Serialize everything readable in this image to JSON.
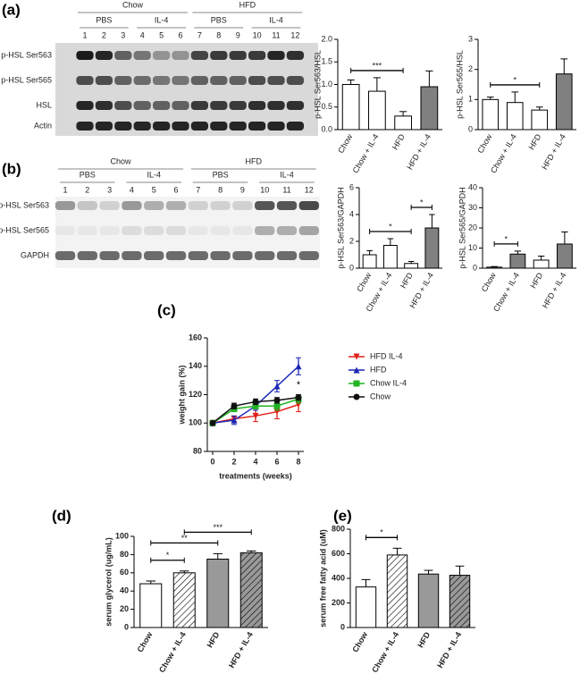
{
  "panel_labels": [
    "(a)",
    "(b)",
    "(c)",
    "(d)",
    "(e)"
  ],
  "blots": [
    {
      "groups": [
        "Chow",
        "HFD"
      ],
      "treatments": [
        "PBS",
        "IL-4",
        "PBS",
        "IL-4"
      ],
      "lanes": [
        "1",
        "2",
        "3",
        "4",
        "5",
        "6",
        "7",
        "8",
        "9",
        "10",
        "11",
        "12"
      ],
      "rows": [
        "p-HSL Ser563",
        "p-HSL Ser565",
        "HSL",
        "Actin"
      ]
    },
    {
      "groups": [
        "Chow",
        "HFD"
      ],
      "treatments": [
        "PBS",
        "IL-4",
        "PBS",
        "IL-4"
      ],
      "lanes": [
        "1",
        "2",
        "3",
        "4",
        "5",
        "6",
        "7",
        "8",
        "9",
        "10",
        "11",
        "12"
      ],
      "rows": [
        "p-HSL Ser563",
        "p-HSL Ser565",
        "GAPDH"
      ]
    }
  ],
  "chart_data": [
    {
      "type": "bar",
      "y_label": "p-HSL Ser563/HSL",
      "categories": [
        "Chow",
        "Chow + IL-4",
        "HFD",
        "HFD + IL-4"
      ],
      "values": [
        1.0,
        0.85,
        0.3,
        0.95
      ],
      "errors": [
        0.1,
        0.3,
        0.1,
        0.35
      ],
      "colors": [
        "#ffffff",
        "#ffffff",
        "#ffffff",
        "#808080"
      ],
      "hatch": [
        false,
        false,
        false,
        false
      ],
      "ylim": [
        0,
        2
      ],
      "yticks": [
        {
          "value": 0,
          "label": "0.0"
        },
        0.5,
        {
          "value": 1,
          "label": "1.0"
        },
        1.5,
        {
          "value": 2,
          "label": "2.0"
        }
      ],
      "significance": [
        {
          "between": [
            "Chow",
            "HFD"
          ],
          "label": "***"
        }
      ]
    },
    {
      "type": "bar",
      "y_label": "p-HSL Ser565/HSL",
      "categories": [
        "Chow",
        "Chow + IL-4",
        "HFD",
        "HFD + IL-4"
      ],
      "values": [
        1.0,
        0.9,
        0.65,
        1.85
      ],
      "errors": [
        0.08,
        0.35,
        0.1,
        0.5
      ],
      "colors": [
        "#ffffff",
        "#ffffff",
        "#ffffff",
        "#808080"
      ],
      "hatch": [
        false,
        false,
        false,
        false
      ],
      "ylim": [
        0,
        3
      ],
      "yticks": [
        0,
        1,
        2,
        3
      ],
      "significance": [
        {
          "between": [
            "Chow",
            "HFD"
          ],
          "label": "*"
        }
      ]
    },
    {
      "type": "bar",
      "y_label": "p-HSL Ser563/GAPDH",
      "categories": [
        "Chow",
        "Chow + IL-4",
        "HFD",
        "HFD + IL-4"
      ],
      "values": [
        1.0,
        1.7,
        0.35,
        3.0
      ],
      "errors": [
        0.3,
        0.5,
        0.15,
        1.0
      ],
      "colors": [
        "#ffffff",
        "#ffffff",
        "#ffffff",
        "#808080"
      ],
      "hatch": [
        false,
        false,
        false,
        false
      ],
      "ylim": [
        0,
        6
      ],
      "yticks": [
        0,
        2,
        4,
        6
      ],
      "significance": [
        {
          "between": [
            "Chow",
            "HFD"
          ],
          "label": "*"
        },
        {
          "between": [
            "HFD",
            "HFD + IL-4"
          ],
          "label": "*"
        }
      ]
    },
    {
      "type": "bar",
      "y_label": "p-HSL Ser565/GAPDH",
      "categories": [
        "Chow",
        "Chow + IL-4",
        "HFD",
        "HFD + IL-4"
      ],
      "values": [
        0.5,
        7,
        4,
        12
      ],
      "errors": [
        0.3,
        1.5,
        2,
        6
      ],
      "colors": [
        "#ffffff",
        "#808080",
        "#ffffff",
        "#808080"
      ],
      "hatch": [
        false,
        false,
        false,
        false
      ],
      "ylim": [
        0,
        40
      ],
      "yticks": [
        0,
        10,
        20,
        30,
        40
      ],
      "significance": [
        {
          "between": [
            "Chow",
            "Chow + IL-4"
          ],
          "label": "*"
        }
      ]
    },
    {
      "type": "line",
      "x_label": "treatments (weeks)",
      "y_label": "weight gain (%)",
      "x": [
        0,
        2,
        4,
        6,
        8
      ],
      "xlim": [
        -0.5,
        8.5
      ],
      "xticks": [
        0,
        2,
        4,
        6,
        8
      ],
      "ylim": [
        80,
        160
      ],
      "yticks": [
        80,
        100,
        120,
        140,
        160
      ],
      "series": [
        {
          "name": "HFD IL-4",
          "color": "#e0201b",
          "marker": "down",
          "values": [
            100,
            103,
            105,
            108,
            113
          ],
          "errors": [
            1,
            2,
            4,
            5,
            5
          ]
        },
        {
          "name": "HFD",
          "color": "#1c28b4",
          "marker": "up",
          "values": [
            100,
            102,
            112,
            126,
            140
          ],
          "errors": [
            1,
            3,
            3,
            4,
            6
          ]
        },
        {
          "name": "Chow IL-4",
          "color": "#22b422",
          "marker": "square",
          "values": [
            100,
            110,
            112,
            112,
            117
          ],
          "errors": [
            1,
            2,
            2,
            3,
            3
          ]
        },
        {
          "name": "Chow",
          "color": "#111111",
          "marker": "circle",
          "values": [
            100,
            112,
            115,
            116,
            118
          ],
          "errors": [
            1,
            2,
            2,
            2,
            2
          ]
        }
      ],
      "annotations": [
        {
          "x": 8,
          "y": 127,
          "label": "*"
        }
      ]
    },
    {
      "type": "bar",
      "y_label": "serum glycerol (ug/mL)",
      "categories": [
        "Chow",
        "Chow + IL-4",
        "HFD",
        "HFD + IL-4"
      ],
      "values": [
        48,
        60,
        75,
        82
      ],
      "errors": [
        3,
        2,
        6,
        2
      ],
      "colors": [
        "#ffffff",
        "#ffffff",
        "#999999",
        "#999999"
      ],
      "hatch": [
        false,
        true,
        false,
        true
      ],
      "ylim": [
        0,
        100
      ],
      "yticks": [
        0,
        20,
        40,
        60,
        80,
        100
      ],
      "significance": [
        {
          "between": [
            "Chow",
            "Chow + IL-4"
          ],
          "label": "*"
        },
        {
          "between": [
            "Chow",
            "HFD"
          ],
          "label": "**"
        },
        {
          "between": [
            "Chow + IL-4",
            "HFD + IL-4"
          ],
          "label": "***"
        }
      ]
    },
    {
      "type": "bar",
      "y_label": "serum free fatty acid (uM)",
      "categories": [
        "Chow",
        "Chow + IL-4",
        "HFD",
        "HFD + IL-4"
      ],
      "values": [
        330,
        590,
        435,
        425
      ],
      "errors": [
        60,
        55,
        30,
        75
      ],
      "colors": [
        "#ffffff",
        "#ffffff",
        "#999999",
        "#999999"
      ],
      "hatch": [
        false,
        true,
        false,
        true
      ],
      "ylim": [
        0,
        800
      ],
      "yticks": [
        0,
        200,
        400,
        600,
        800
      ],
      "significance": [
        {
          "between": [
            "Chow",
            "Chow + IL-4"
          ],
          "label": "*"
        }
      ]
    }
  ]
}
